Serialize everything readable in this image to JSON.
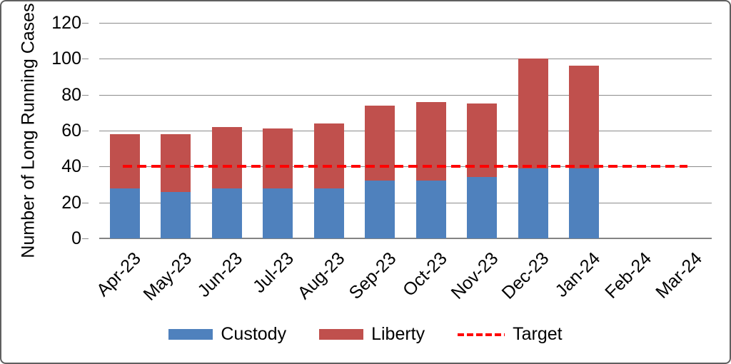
{
  "figure": {
    "border_color": "#606060",
    "background": "#ffffff",
    "gridline_color": "#8C8C8C",
    "text_color": "#000000"
  },
  "legend": {
    "position": "bottom",
    "items": [
      {
        "label": "Custody",
        "type": "box",
        "color": "#4F81BD"
      },
      {
        "label": "Liberty",
        "type": "box",
        "color": "#C0504D"
      },
      {
        "label": "Target",
        "type": "dash",
        "color": "#FF0000"
      }
    ]
  },
  "chart_data": {
    "type": "bar",
    "stacked": true,
    "title": "",
    "xlabel": "",
    "ylabel": "Number of Long Running Cases",
    "categories": [
      "Apr-23",
      "May-23",
      "Jun-23",
      "Jul-23",
      "Aug-23",
      "Sep-23",
      "Oct-23",
      "Nov-23",
      "Dec-23",
      "Jan-24",
      "Feb-24",
      "Mar-24"
    ],
    "series": [
      {
        "name": "Custody",
        "color": "#4F81BD",
        "values": [
          28,
          26,
          28,
          28,
          28,
          32,
          32,
          34,
          39,
          39,
          0,
          0
        ]
      },
      {
        "name": "Liberty",
        "color": "#C0504D",
        "values": [
          30,
          32,
          34,
          33,
          36,
          42,
          44,
          41,
          61,
          57,
          0,
          0
        ]
      }
    ],
    "totals": [
      58,
      58,
      62,
      61,
      64,
      74,
      76,
      75,
      100,
      96,
      0,
      0
    ],
    "target": {
      "name": "Target",
      "value": 40,
      "color": "#FF0000",
      "style": "dashed"
    },
    "ylim": [
      0,
      120
    ],
    "yticks": [
      0,
      20,
      40,
      60,
      80,
      100,
      120
    ],
    "grid": "horizontal",
    "legend_position": "bottom",
    "x_tick_rotation": 45
  }
}
